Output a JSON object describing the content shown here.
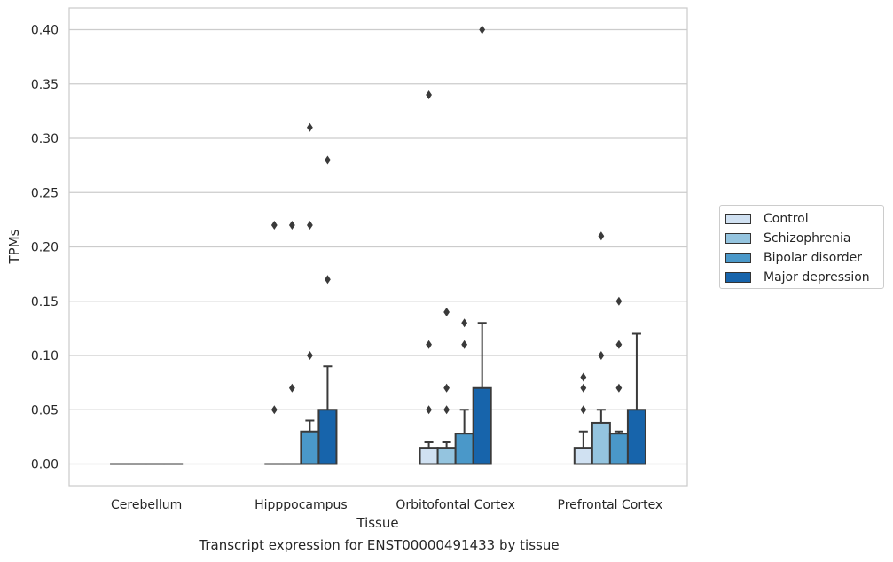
{
  "chart_data": {
    "type": "box",
    "xlabel": "Tissue",
    "ylabel": "TPMs",
    "caption": "Transcript expression for ENST00000491433 by tissue",
    "ylim": [
      -0.02,
      0.42
    ],
    "yticks": [
      0.0,
      0.05,
      0.1,
      0.15,
      0.2,
      0.25,
      0.3,
      0.35,
      0.4
    ],
    "ytick_labels": [
      "0.00",
      "0.05",
      "0.10",
      "0.15",
      "0.20",
      "0.25",
      "0.30",
      "0.35",
      "0.40"
    ],
    "grid": "horizontal",
    "legend_position": "right-outside",
    "categories": [
      "Cerebellum",
      "Hipppocampus",
      "Orbitofontal Cortex",
      "Prefrontal Cortex"
    ],
    "series": [
      {
        "name": "Control",
        "color": "#d0e1f2",
        "boxes": [
          {
            "q1": 0,
            "median": 0,
            "q3": 0,
            "whisker_low": 0,
            "whisker_high": 0,
            "outliers": []
          },
          {
            "q1": 0,
            "median": 0,
            "q3": 0,
            "whisker_low": 0,
            "whisker_high": 0,
            "outliers": [
              0.05,
              0.22
            ]
          },
          {
            "q1": 0,
            "median": 0,
            "q3": 0.015,
            "whisker_low": 0,
            "whisker_high": 0.02,
            "outliers": [
              0.05,
              0.11,
              0.34
            ]
          },
          {
            "q1": 0,
            "median": 0,
            "q3": 0.015,
            "whisker_low": 0,
            "whisker_high": 0.03,
            "outliers": [
              0.05,
              0.07,
              0.08
            ]
          }
        ]
      },
      {
        "name": "Schizophrenia",
        "color": "#94c4df",
        "boxes": [
          {
            "q1": 0,
            "median": 0,
            "q3": 0,
            "whisker_low": 0,
            "whisker_high": 0,
            "outliers": []
          },
          {
            "q1": 0,
            "median": 0,
            "q3": 0,
            "whisker_low": 0,
            "whisker_high": 0,
            "outliers": [
              0.07,
              0.22
            ]
          },
          {
            "q1": 0,
            "median": 0,
            "q3": 0.015,
            "whisker_low": 0,
            "whisker_high": 0.02,
            "outliers": [
              0.05,
              0.07,
              0.14
            ]
          },
          {
            "q1": 0,
            "median": 0,
            "q3": 0.038,
            "whisker_low": 0,
            "whisker_high": 0.05,
            "outliers": [
              0.1,
              0.21
            ]
          }
        ]
      },
      {
        "name": "Bipolar disorder",
        "color": "#4a98c9",
        "boxes": [
          {
            "q1": 0,
            "median": 0,
            "q3": 0,
            "whisker_low": 0,
            "whisker_high": 0,
            "outliers": []
          },
          {
            "q1": 0,
            "median": 0,
            "q3": 0.03,
            "whisker_low": 0,
            "whisker_high": 0.04,
            "outliers": [
              0.1,
              0.22,
              0.31
            ]
          },
          {
            "q1": 0,
            "median": 0,
            "q3": 0.028,
            "whisker_low": 0,
            "whisker_high": 0.05,
            "outliers": [
              0.11,
              0.13
            ]
          },
          {
            "q1": 0,
            "median": 0,
            "q3": 0.028,
            "whisker_low": 0,
            "whisker_high": 0.03,
            "outliers": [
              0.07,
              0.11,
              0.15
            ]
          }
        ]
      },
      {
        "name": "Major depression",
        "color": "#1764ab",
        "boxes": [
          {
            "q1": 0,
            "median": 0,
            "q3": 0,
            "whisker_low": 0,
            "whisker_high": 0,
            "outliers": []
          },
          {
            "q1": 0,
            "median": 0,
            "q3": 0.05,
            "whisker_low": 0,
            "whisker_high": 0.09,
            "outliers": [
              0.17,
              0.28
            ]
          },
          {
            "q1": 0,
            "median": 0,
            "q3": 0.07,
            "whisker_low": 0,
            "whisker_high": 0.13,
            "outliers": [
              0.4
            ]
          },
          {
            "q1": 0,
            "median": 0,
            "q3": 0.05,
            "whisker_low": 0,
            "whisker_high": 0.12,
            "outliers": []
          }
        ]
      }
    ]
  }
}
